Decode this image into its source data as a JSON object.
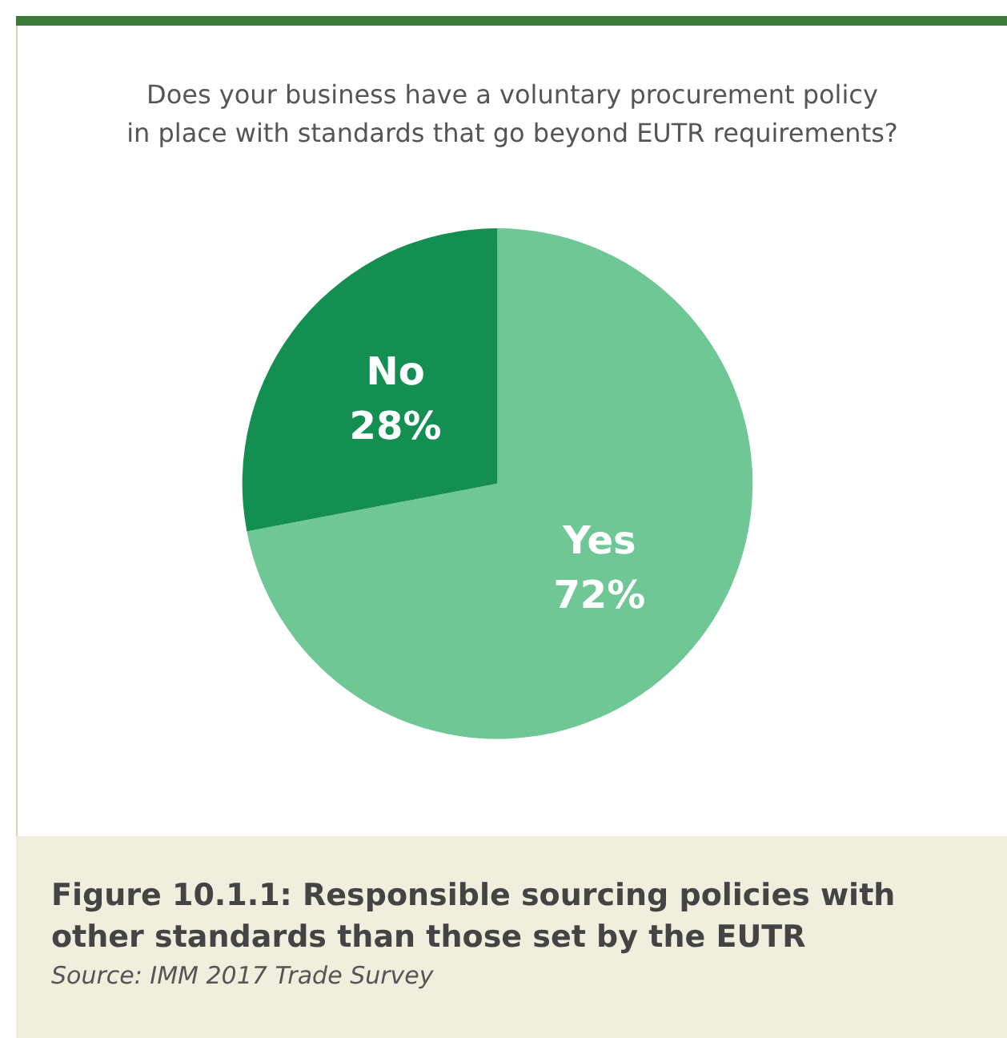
{
  "chart_data": {
    "type": "pie",
    "title": "Does your business have a voluntary procurement policy\nin place with standards that go beyond EUTR requirements?",
    "categories": [
      "Yes",
      "No"
    ],
    "values": [
      72,
      28
    ],
    "value_labels": [
      "72%",
      "28%"
    ],
    "colors": [
      "#6fc796",
      "#148f52"
    ],
    "legend": false,
    "annotations": [
      "Figure 10.1.1: Responsible sourcing policies with other standards than those set by the EUTR",
      "Source: IMM 2017 Trade Survey"
    ]
  }
}
